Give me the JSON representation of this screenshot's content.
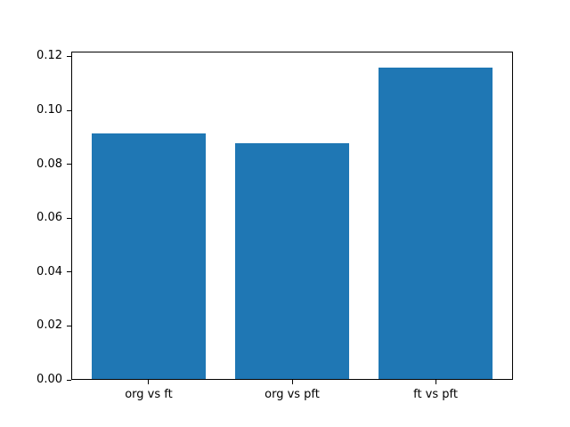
{
  "figure": {
    "background": "#ffffff",
    "title": ""
  },
  "chart_data": {
    "type": "bar",
    "categories": [
      "org vs ft",
      "org vs pft",
      "ft vs pft"
    ],
    "values": [
      0.0916,
      0.0878,
      0.116
    ],
    "title": "",
    "xlabel": "",
    "ylabel": "",
    "xlim": [
      -0.54,
      2.54
    ],
    "ylim": [
      0,
      0.1218
    ],
    "yticks": [
      0.0,
      0.02,
      0.04,
      0.06,
      0.08,
      0.1,
      0.12
    ],
    "ytick_label_decimals": 2,
    "bar_width": 0.8,
    "bar_color": "#1f77b4",
    "axis_color": "#000000",
    "grid": false,
    "legend": false
  }
}
